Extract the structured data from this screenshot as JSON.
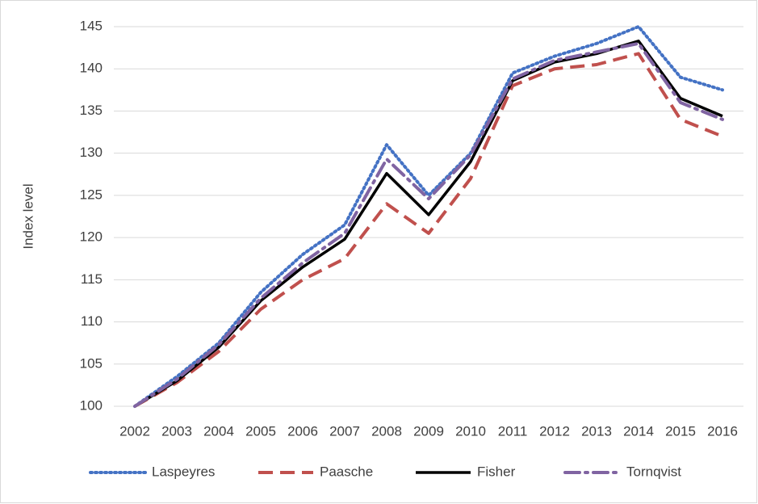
{
  "chart_data": {
    "type": "line",
    "y_label": "Index level",
    "categories": [
      "2002",
      "2003",
      "2004",
      "2005",
      "2006",
      "2007",
      "2008",
      "2009",
      "2010",
      "2011",
      "2012",
      "2013",
      "2014",
      "2015",
      "2016"
    ],
    "series": [
      {
        "name": "Laspeyres",
        "color": "#4472c4",
        "style": "dotted",
        "values": [
          100,
          103.5,
          107.5,
          113.5,
          118,
          121.5,
          131,
          125,
          130,
          139.5,
          141.5,
          143,
          145,
          139,
          137.5
        ]
      },
      {
        "name": "Paasche",
        "color": "#c0504d",
        "style": "dashed",
        "values": [
          100,
          102.8,
          106.5,
          111.5,
          115,
          117.5,
          124,
          120.5,
          127,
          138,
          140,
          140.5,
          141.8,
          134,
          132
        ]
      },
      {
        "name": "Fisher",
        "color": "#000000",
        "style": "solid",
        "values": [
          100,
          103,
          107,
          112.5,
          116.5,
          119.8,
          127.6,
          122.7,
          129,
          138.6,
          140.8,
          141.8,
          143.3,
          136.5,
          134.4
        ]
      },
      {
        "name": "Tornqvist",
        "color": "#8064a2",
        "style": "dashdot",
        "values": [
          100,
          103.2,
          107.3,
          112.8,
          117,
          120.5,
          129.3,
          124.6,
          129.8,
          138.8,
          141,
          142,
          143,
          136,
          134
        ]
      }
    ],
    "ylim": [
      100,
      145
    ],
    "yticks": [
      100,
      105,
      110,
      115,
      120,
      125,
      130,
      135,
      140,
      145
    ],
    "grid": true,
    "legend": "bottom"
  }
}
